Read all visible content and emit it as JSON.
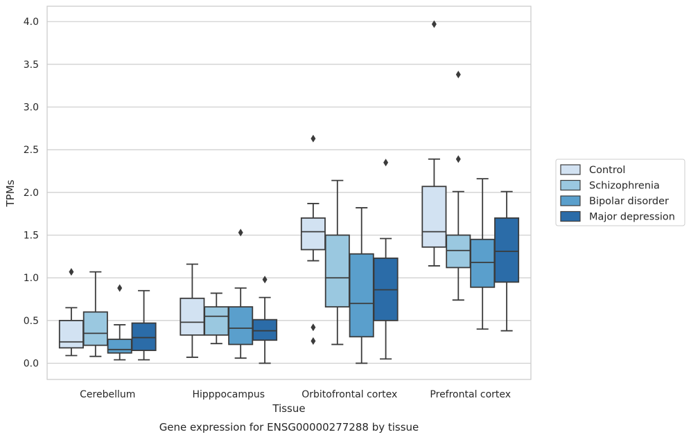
{
  "chart_data": {
    "type": "box",
    "title": "",
    "caption": "Gene expression for ENSG00000277288 by tissue",
    "xlabel": "Tissue",
    "ylabel": "TPMs",
    "ylim": [
      -0.19,
      4.18
    ],
    "yticks": [
      "0.0",
      "0.5",
      "1.0",
      "1.5",
      "2.0",
      "2.5",
      "3.0",
      "3.5",
      "4.0"
    ],
    "ytick_values": [
      0,
      0.5,
      1.0,
      1.5,
      2.0,
      2.5,
      3.0,
      3.5,
      4.0
    ],
    "grid": "horizontal",
    "legend_position": "right",
    "categories": [
      "Cerebellum",
      "Hipppocampus",
      "Orbitofrontal cortex",
      "Prefrontal cortex"
    ],
    "series": [
      {
        "name": "Control",
        "color": "#d2e2f2",
        "boxes": [
          {
            "min": 0.09,
            "q1": 0.18,
            "median": 0.25,
            "q3": 0.5,
            "max": 0.65,
            "outliers": [
              1.07
            ]
          },
          {
            "min": 0.07,
            "q1": 0.33,
            "median": 0.48,
            "q3": 0.76,
            "max": 1.16,
            "outliers": []
          },
          {
            "min": 1.2,
            "q1": 1.33,
            "median": 1.54,
            "q3": 1.7,
            "max": 1.87,
            "outliers": [
              2.63,
              0.42,
              0.26
            ]
          },
          {
            "min": 1.14,
            "q1": 1.36,
            "median": 1.54,
            "q3": 2.07,
            "max": 2.39,
            "outliers": [
              3.97
            ]
          }
        ]
      },
      {
        "name": "Schizophrenia",
        "color": "#9ac8e0",
        "boxes": [
          {
            "min": 0.08,
            "q1": 0.21,
            "median": 0.35,
            "q3": 0.6,
            "max": 1.07,
            "outliers": []
          },
          {
            "min": 0.23,
            "q1": 0.33,
            "median": 0.55,
            "q3": 0.66,
            "max": 0.82,
            "outliers": []
          },
          {
            "min": 0.22,
            "q1": 0.66,
            "median": 1.0,
            "q3": 1.5,
            "max": 2.14,
            "outliers": []
          },
          {
            "min": 0.74,
            "q1": 1.12,
            "median": 1.32,
            "q3": 1.5,
            "max": 2.01,
            "outliers": [
              3.38,
              2.39
            ]
          }
        ]
      },
      {
        "name": "Bipolar disorder",
        "color": "#5a9fcc",
        "boxes": [
          {
            "min": 0.04,
            "q1": 0.12,
            "median": 0.16,
            "q3": 0.28,
            "max": 0.45,
            "outliers": [
              0.88
            ]
          },
          {
            "min": 0.06,
            "q1": 0.22,
            "median": 0.41,
            "q3": 0.66,
            "max": 0.88,
            "outliers": [
              1.53
            ]
          },
          {
            "min": 0.0,
            "q1": 0.31,
            "median": 0.7,
            "q3": 1.28,
            "max": 1.82,
            "outliers": []
          },
          {
            "min": 0.4,
            "q1": 0.89,
            "median": 1.18,
            "q3": 1.45,
            "max": 2.16,
            "outliers": []
          }
        ]
      },
      {
        "name": "Major depression",
        "color": "#2b6ca8",
        "boxes": [
          {
            "min": 0.04,
            "q1": 0.15,
            "median": 0.3,
            "q3": 0.47,
            "max": 0.85,
            "outliers": []
          },
          {
            "min": 0.0,
            "q1": 0.27,
            "median": 0.38,
            "q3": 0.51,
            "max": 0.77,
            "outliers": [
              0.98
            ]
          },
          {
            "min": 0.05,
            "q1": 0.5,
            "median": 0.86,
            "q3": 1.23,
            "max": 1.46,
            "outliers": [
              2.35
            ]
          },
          {
            "min": 0.38,
            "q1": 0.95,
            "median": 1.31,
            "q3": 1.7,
            "max": 2.01,
            "outliers": []
          }
        ]
      }
    ],
    "colors": {
      "edge": "#3b3b3b",
      "grid": "#cccccc",
      "frame": "#cccccc",
      "text": "#262626"
    }
  }
}
